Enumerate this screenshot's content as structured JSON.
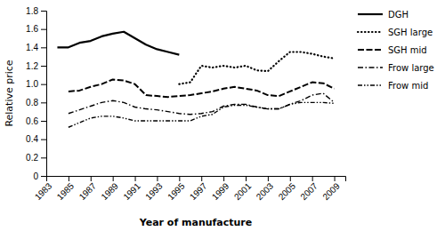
{
  "chart_data": {
    "type": "line",
    "x": [
      1984,
      1985,
      1986,
      1987,
      1988,
      1989,
      1990,
      1991,
      1992,
      1993,
      1994,
      1995,
      1996,
      1997,
      1998,
      1999,
      2000,
      2001,
      2002,
      2003,
      2004,
      2005,
      2006,
      2007,
      2008,
      2009
    ],
    "series": [
      {
        "name": "DGH",
        "color": "#000000",
        "line_style": "solid",
        "values": [
          1.4,
          1.4,
          1.45,
          1.47,
          1.52,
          1.55,
          1.57,
          1.5,
          1.43,
          1.38,
          1.35,
          1.32,
          null,
          null,
          null,
          null,
          null,
          null,
          null,
          null,
          null,
          null,
          null,
          null,
          null,
          null
        ]
      },
      {
        "name": "SGH large",
        "color": "#000000",
        "line_style": "dotted",
        "values": [
          null,
          null,
          null,
          null,
          null,
          null,
          null,
          null,
          null,
          null,
          null,
          1.0,
          1.02,
          1.2,
          1.18,
          1.2,
          1.18,
          1.2,
          1.15,
          1.14,
          1.25,
          1.35,
          1.35,
          1.33,
          1.3,
          1.28
        ]
      },
      {
        "name": "SGH mid",
        "color": "#000000",
        "line_style": "dashed",
        "values": [
          null,
          0.92,
          0.93,
          0.97,
          1.0,
          1.05,
          1.04,
          1.0,
          0.88,
          0.87,
          0.86,
          0.87,
          0.88,
          0.9,
          0.92,
          0.95,
          0.97,
          0.95,
          0.93,
          0.88,
          0.87,
          0.92,
          0.97,
          1.02,
          1.01,
          0.95
        ]
      },
      {
        "name": "Frow large",
        "color": "#000000",
        "line_style": "dashdot",
        "values": [
          null,
          0.68,
          0.72,
          0.76,
          0.8,
          0.82,
          0.8,
          0.75,
          0.73,
          0.72,
          0.7,
          0.68,
          0.67,
          0.68,
          0.7,
          0.76,
          0.78,
          0.78,
          0.75,
          0.73,
          0.73,
          0.78,
          0.82,
          0.88,
          0.9,
          0.8
        ]
      },
      {
        "name": "Frow mid",
        "color": "#000000",
        "line_style": "dashdotdot",
        "values": [
          null,
          0.53,
          0.58,
          0.63,
          0.65,
          0.65,
          0.63,
          0.6,
          0.6,
          0.6,
          0.6,
          0.6,
          0.6,
          0.65,
          0.67,
          0.75,
          0.77,
          0.77,
          0.75,
          0.73,
          0.73,
          0.78,
          0.8,
          0.8,
          0.8,
          0.79
        ]
      }
    ],
    "xlabel": "Year of manufacture",
    "ylabel": "Relative price",
    "xlim": [
      1983,
      2010
    ],
    "xticks": [
      1983,
      1985,
      1987,
      1989,
      1991,
      1993,
      1995,
      1997,
      1999,
      2001,
      2003,
      2005,
      2007,
      2009
    ],
    "ylim": [
      0,
      1.8
    ],
    "yticks": [
      0,
      0.2,
      0.4,
      0.6,
      0.8,
      {
        "value": 1.0,
        "label": "1.0"
      },
      1.2,
      1.4,
      1.6,
      1.8
    ],
    "grid": false,
    "legend": "right"
  }
}
